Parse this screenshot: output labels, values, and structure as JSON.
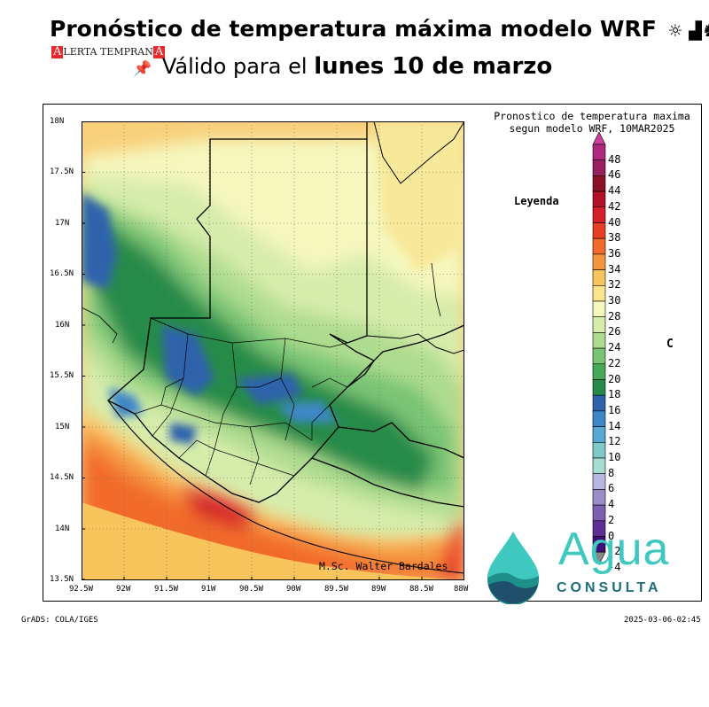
{
  "header": {
    "title": "Pronóstico de temperatura máxima modelo WRF",
    "title_icons": "☼ ▟♞",
    "alerta_logo_text": "ALERTA TEMPRANA",
    "pin_icon": "pushpin-icon",
    "subtitle_prefix": "Válido para el",
    "subtitle_date": "lunes 10 de marzo"
  },
  "map": {
    "title_line1": "Pronostico de temperatura maxima",
    "title_line2": "segun modelo WRF, 10MAR2025",
    "legend_title": "Leyenda",
    "unit": "C",
    "lat_ticks": [
      "18N",
      "17.5N",
      "17N",
      "16.5N",
      "16N",
      "15.5N",
      "15N",
      "14.5N",
      "14N",
      "13.5N"
    ],
    "lon_ticks": [
      "92.5W",
      "92W",
      "91.5W",
      "91W",
      "90.5W",
      "90W",
      "89.5W",
      "89W",
      "88.5W",
      "88W"
    ],
    "credit": "M.Sc. Walter Bardales"
  },
  "colorbar": {
    "labels": [
      "48",
      "46",
      "44",
      "42",
      "40",
      "38",
      "36",
      "34",
      "32",
      "30",
      "28",
      "26",
      "24",
      "22",
      "20",
      "18",
      "16",
      "14",
      "12",
      "10",
      "8",
      "6",
      "4",
      "2",
      "0",
      "-2",
      "-4"
    ],
    "colors": [
      "#b0297e",
      "#9a1f5e",
      "#8b1028",
      "#b5102a",
      "#d5202b",
      "#e83e25",
      "#f26a2c",
      "#f5963f",
      "#f8c45c",
      "#fbe48c",
      "#f5f7bd",
      "#d6ecab",
      "#aedc8f",
      "#79c474",
      "#46a95a",
      "#258b49",
      "#2e63ac",
      "#3d87c7",
      "#55a9d4",
      "#7ec8c6",
      "#a6ddd2",
      "#b7b7df",
      "#9b8dc7",
      "#7c5fb0",
      "#5e2e95",
      "#3f0f79",
      "#ffffff"
    ],
    "top_arrow_color": "#cc3f9c",
    "bottom_arrow_color": "#888888"
  },
  "footer": {
    "grads_label": "GrADS: COLA/IGES",
    "timestamp": "2025-03-06-02:45"
  },
  "brand": {
    "name": "Agua",
    "sub": "CONSULTA",
    "primary_color": "#3fc8c0",
    "dark_color": "#1f6f7b"
  }
}
